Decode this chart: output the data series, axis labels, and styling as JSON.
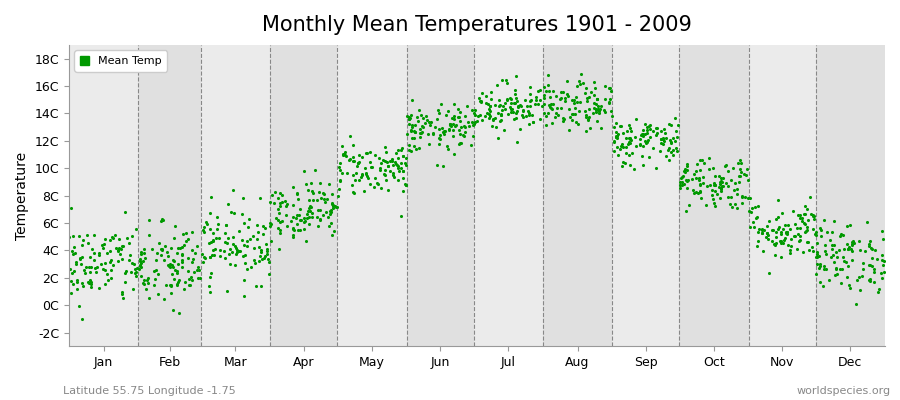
{
  "title": "Monthly Mean Temperatures 1901 - 2009",
  "ylabel": "Temperature",
  "ytick_labels": [
    "-2C",
    "0C",
    "2C",
    "4C",
    "6C",
    "8C",
    "10C",
    "12C",
    "14C",
    "16C",
    "18C"
  ],
  "ytick_values": [
    -2,
    0,
    2,
    4,
    6,
    8,
    10,
    12,
    14,
    16,
    18
  ],
  "ylim": [
    -3.0,
    19.0
  ],
  "months": [
    "Jan",
    "Feb",
    "Mar",
    "Apr",
    "May",
    "Jun",
    "Jul",
    "Aug",
    "Sep",
    "Oct",
    "Nov",
    "Dec"
  ],
  "month_days": [
    31,
    28,
    31,
    30,
    31,
    30,
    31,
    31,
    30,
    31,
    30,
    31
  ],
  "scatter_color": "#009900",
  "bg_color_light": "#ebebeb",
  "bg_color_dark": "#e0e0e0",
  "grid_color": "#888888",
  "title_fontsize": 15,
  "axis_label_fontsize": 10,
  "tick_label_fontsize": 9,
  "footer_left": "Latitude 55.75 Longitude -1.75",
  "footer_right": "worldspecies.org",
  "legend_label": "Mean Temp",
  "mean_temps": [
    3.0,
    2.8,
    4.5,
    7.0,
    10.0,
    12.8,
    14.5,
    14.5,
    12.0,
    9.0,
    5.5,
    3.5
  ],
  "std_temps": [
    1.5,
    1.6,
    1.4,
    1.1,
    1.0,
    0.9,
    0.9,
    0.9,
    0.9,
    1.0,
    1.1,
    1.3
  ],
  "n_years": 109,
  "seed": 42
}
